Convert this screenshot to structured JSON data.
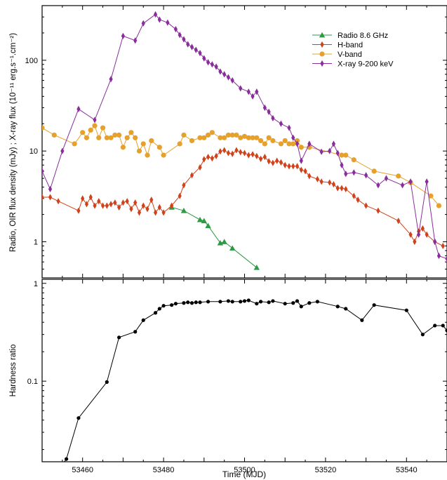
{
  "chart_data": [
    {
      "type": "line",
      "xlabel": "",
      "ylabel": "Radio, OIR flux density (mJy) ; X-ray flux (10⁻¹¹ erg.s⁻¹.cm⁻²)",
      "yscale": "log",
      "xlim": [
        53450,
        53550
      ],
      "ylim": [
        0.4,
        400
      ],
      "y_ticks": [
        {
          "v": 1,
          "label": "1"
        },
        {
          "v": 10,
          "label": "10"
        },
        {
          "v": 100,
          "label": "100"
        }
      ],
      "legend_position": "top-right",
      "series": [
        {
          "name": "Radio 8.6 GHz",
          "color": "#2e9a44",
          "marker": "triangle",
          "x": [
            53482,
            53485,
            53489,
            53490,
            53491,
            53494,
            53495,
            53497,
            53503
          ],
          "y": [
            2.4,
            2.2,
            1.75,
            1.7,
            1.5,
            0.97,
            1.0,
            0.85,
            0.52
          ]
        },
        {
          "name": "H-band",
          "color": "#d0421b",
          "marker": "diamond",
          "x": [
            53450,
            53452,
            53454,
            53459,
            53460,
            53461,
            53462,
            53463,
            53464,
            53465,
            53466,
            53467,
            53468,
            53469,
            53470,
            53471,
            53472,
            53473,
            53474,
            53475,
            53476,
            53477,
            53478,
            53479,
            53480,
            53482,
            53484,
            53485,
            53487,
            53489,
            53490,
            53491,
            53492,
            53493,
            53494,
            53495,
            53496,
            53497,
            53498,
            53499,
            53500,
            53501,
            53502,
            53503,
            53504,
            53505,
            53506,
            53507,
            53508,
            53509,
            53510,
            53511,
            53512,
            53513,
            53514,
            53515,
            53516,
            53518,
            53519,
            53521,
            53522,
            53523,
            53524,
            53525,
            53527,
            53528,
            53530,
            53533,
            53538,
            53541,
            53542,
            53543,
            53544,
            53545,
            53547,
            53549
          ],
          "y": [
            3.1,
            3.1,
            2.8,
            2.2,
            3.0,
            2.6,
            3.1,
            2.5,
            2.8,
            2.5,
            2.5,
            2.6,
            2.7,
            2.4,
            2.7,
            2.8,
            2.3,
            2.7,
            2.1,
            2.5,
            2.3,
            2.9,
            2.1,
            2.4,
            2.1,
            2.5,
            3.2,
            4.2,
            5.4,
            6.6,
            8.1,
            8.6,
            8.3,
            8.8,
            9.9,
            10.2,
            9.5,
            9.3,
            10.2,
            9.7,
            9.5,
            9.0,
            9.2,
            8.8,
            8.2,
            8.6,
            7.7,
            7.4,
            7.8,
            7.5,
            7.0,
            6.8,
            6.8,
            6.8,
            6.2,
            6.0,
            5.3,
            4.9,
            4.6,
            4.5,
            4.3,
            3.9,
            3.9,
            3.8,
            3.2,
            2.9,
            2.5,
            2.2,
            1.7,
            1.2,
            1.0,
            1.3,
            1.4,
            1.2,
            1.0,
            0.9
          ]
        },
        {
          "name": "V-band",
          "color": "#e6a12c",
          "marker": "circle",
          "x": [
            53450,
            53453,
            53458,
            53460,
            53461,
            53462,
            53463,
            53464,
            53465,
            53466,
            53467,
            53468,
            53469,
            53470,
            53471,
            53472,
            53473,
            53474,
            53475,
            53476,
            53477,
            53479,
            53480,
            53484,
            53485,
            53487,
            53489,
            53490,
            53491,
            53492,
            53494,
            53495,
            53496,
            53497,
            53498,
            53499,
            53500,
            53501,
            53502,
            53503,
            53504,
            53505,
            53506,
            53507,
            53509,
            53510,
            53511,
            53512,
            53513,
            53514,
            53516,
            53524,
            53525,
            53527,
            53532,
            53538,
            53541,
            53546,
            53548
          ],
          "y": [
            18,
            15,
            12,
            16,
            14,
            17,
            19,
            14,
            18,
            14,
            14,
            15,
            15,
            11,
            14,
            16,
            14,
            10,
            12,
            9,
            13,
            11,
            9,
            12,
            15,
            13,
            14,
            14,
            15,
            16,
            14,
            14,
            15,
            15,
            15,
            14,
            14.5,
            14,
            14,
            14,
            13,
            12,
            14,
            13,
            12,
            13,
            12,
            12,
            13,
            11,
            11,
            9,
            9,
            8,
            6,
            5.3,
            4.5,
            3.2,
            2.5
          ]
        },
        {
          "name": "X-ray 9-200 keV",
          "color": "#8a2d9c",
          "marker": "diamond",
          "x": [
            53450,
            53452,
            53455,
            53459,
            53463,
            53467,
            53470,
            53473,
            53475,
            53478,
            53479,
            53481,
            53483,
            53484,
            53485,
            53486,
            53487,
            53488,
            53489,
            53490,
            53491,
            53492,
            53493,
            53494,
            53495,
            53496,
            53497,
            53499,
            53501,
            53502,
            53503,
            53505,
            53506,
            53507,
            53509,
            53511,
            53512,
            53513,
            53514,
            53516,
            53519,
            53521,
            53522,
            53523,
            53524,
            53525,
            53527,
            53530,
            53533,
            53535,
            53539,
            53541,
            53543,
            53545,
            53547,
            53548,
            53550
          ],
          "y": [
            6.0,
            3.8,
            10,
            29,
            22,
            62,
            185,
            165,
            255,
            320,
            280,
            260,
            220,
            190,
            170,
            150,
            140,
            130,
            120,
            105,
            95,
            90,
            85,
            75,
            70,
            65,
            60,
            49,
            45,
            40,
            45,
            30,
            27,
            23,
            20,
            18,
            14,
            12,
            7.8,
            12,
            9.8,
            10,
            12,
            9.5,
            7.0,
            5.6,
            5.8,
            5.4,
            4.2,
            5.0,
            4.2,
            4.6,
            1.2,
            4.6,
            1.0,
            0.7,
            0.65
          ]
        }
      ]
    },
    {
      "type": "line",
      "xlabel": "Time (MJD)",
      "ylabel": "Hardness ratio",
      "yscale": "log",
      "xlim": [
        53450,
        53550
      ],
      "ylim": [
        0.015,
        1.1
      ],
      "x_ticks": [
        53460,
        53480,
        53500,
        53520,
        53540
      ],
      "y_ticks": [
        {
          "v": 0.1,
          "label": "0.1"
        },
        {
          "v": 1,
          "label": "1"
        }
      ],
      "series": [
        {
          "name": "",
          "color": "#000000",
          "marker": "circle",
          "x": [
            53450,
            53455,
            53456,
            53459,
            53466,
            53469,
            53473,
            53475,
            53478,
            53479,
            53480,
            53482,
            53483,
            53485,
            53486,
            53487,
            53488,
            53489,
            53491,
            53494,
            53496,
            53497,
            53499,
            53500,
            53501,
            53503,
            53504,
            53506,
            53507,
            53510,
            53512,
            53513,
            53514,
            53516,
            53518,
            53523,
            53525,
            53529,
            53532,
            53540,
            53544,
            53547,
            53549,
            53550
          ],
          "y": [
            0.009,
            0.014,
            0.016,
            0.042,
            0.098,
            0.28,
            0.32,
            0.42,
            0.5,
            0.55,
            0.59,
            0.6,
            0.62,
            0.63,
            0.64,
            0.63,
            0.64,
            0.64,
            0.65,
            0.65,
            0.66,
            0.65,
            0.65,
            0.66,
            0.67,
            0.62,
            0.65,
            0.64,
            0.66,
            0.62,
            0.63,
            0.66,
            0.58,
            0.63,
            0.65,
            0.58,
            0.55,
            0.42,
            0.6,
            0.53,
            0.3,
            0.37,
            0.37,
            0.33
          ]
        }
      ]
    }
  ]
}
